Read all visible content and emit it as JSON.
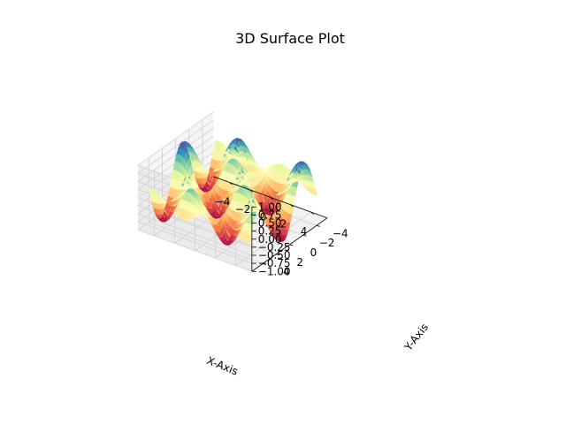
{
  "chart_data": {
    "type": "surface",
    "title": "3D Surface Plot",
    "xlabel": "X-Axis",
    "ylabel": "Y-Axis",
    "zlabel": "",
    "function": "z = sin(x) * cos(y)",
    "xlim": [
      -5,
      5
    ],
    "ylim": [
      -5,
      5
    ],
    "zlim": [
      -1,
      1
    ],
    "x_ticks": [
      -4,
      -2,
      0,
      2,
      4
    ],
    "y_ticks": [
      -4,
      -2,
      0,
      2,
      4
    ],
    "z_ticks": [
      -1.0,
      -0.75,
      -0.5,
      -0.25,
      0.0,
      0.25,
      0.5,
      0.75,
      1.0
    ],
    "x_tick_labels": [
      "−4",
      "−2",
      "0",
      "2",
      "4"
    ],
    "y_tick_labels": [
      "−4",
      "−2",
      "0",
      "2",
      "4"
    ],
    "z_tick_labels": [
      "−1.00",
      "−0.75",
      "−0.50",
      "−0.25",
      "0.00",
      "0.25",
      "0.50",
      "0.75",
      "1.00"
    ],
    "colormap": "Spectral",
    "grid": true,
    "view": {
      "elev": 30,
      "azim": -60
    }
  }
}
